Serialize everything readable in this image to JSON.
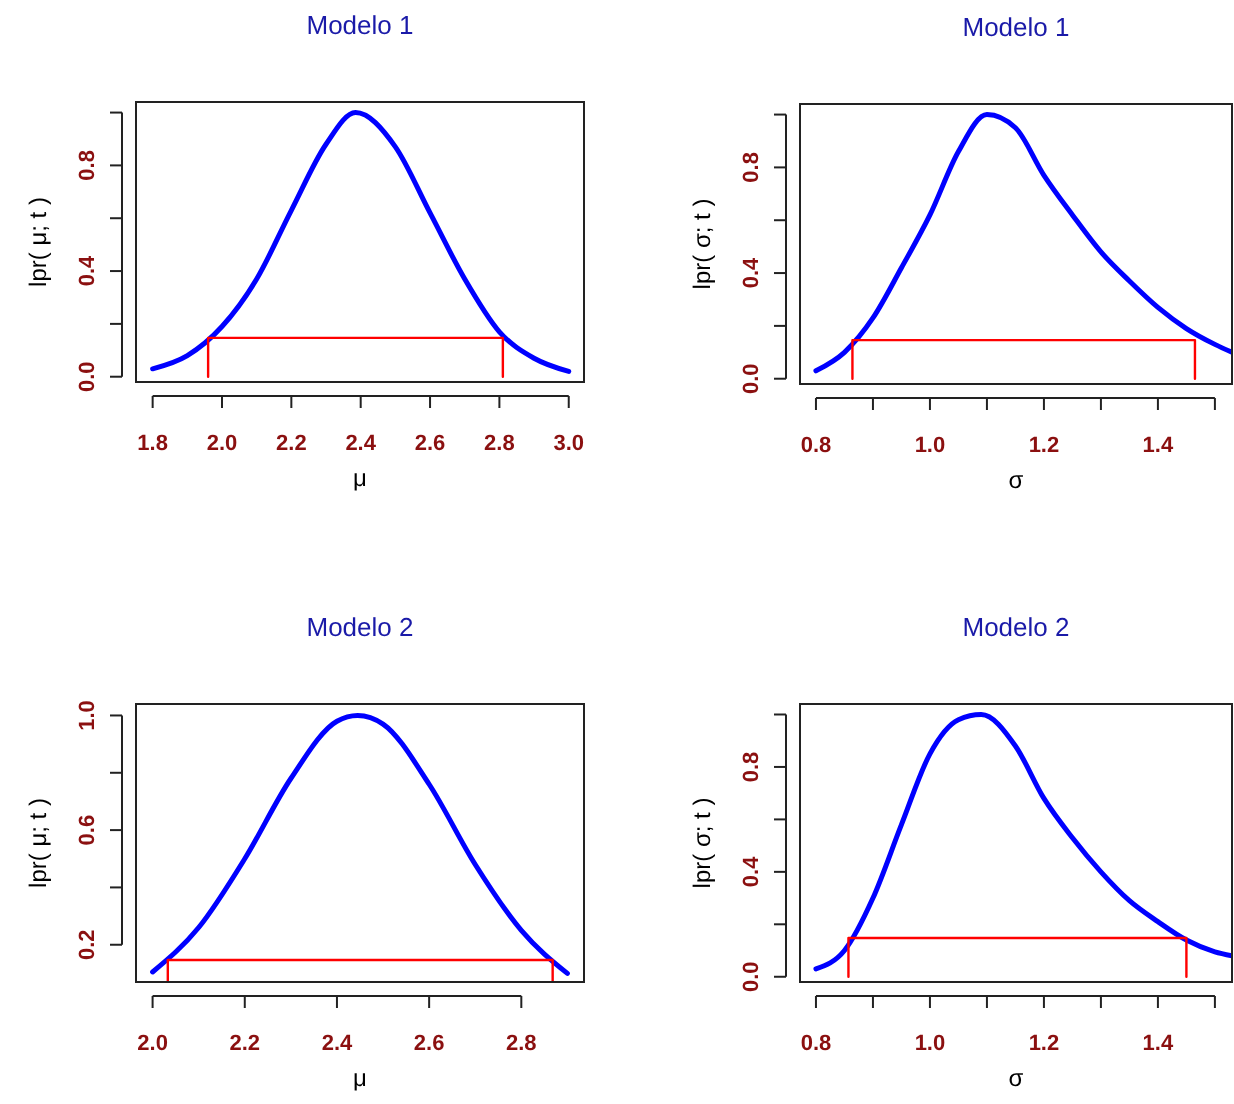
{
  "chart_data": [
    {
      "type": "line",
      "title": "Modelo 1",
      "xlabel": "μ",
      "ylabel": "lpr( μ; t )",
      "xlim": [
        1.752,
        3.044
      ],
      "xticks": [
        1.8,
        {
          "value": 2.0,
          "label": "2.0"
        },
        2.2,
        2.4,
        2.6,
        2.8,
        {
          "value": 3.0,
          "label": "3.0"
        }
      ],
      "ylim": [
        -0.02,
        1.04
      ],
      "yticks": [
        {
          "value": 0.0,
          "label": "0.0"
        },
        {
          "value": 0.2,
          "label": null
        },
        0.4,
        {
          "value": 0.6,
          "label": null
        },
        0.8,
        {
          "value": 1.0,
          "label": null
        }
      ],
      "series": [
        {
          "color": "#0000ff",
          "x": [
            1.8,
            1.9,
            2.0,
            2.1,
            2.2,
            2.3,
            2.385,
            2.5,
            2.6,
            2.7,
            2.8,
            2.9,
            3.0
          ],
          "values": [
            0.03,
            0.08,
            0.19,
            0.37,
            0.63,
            0.88,
            1.0,
            0.87,
            0.62,
            0.37,
            0.17,
            0.07,
            0.02
          ]
        },
        {
          "color": "#ff0000",
          "x": [
            1.96,
            1.96,
            2.81,
            2.81
          ],
          "values": [
            0.0,
            0.147,
            0.147,
            0.0
          ]
        }
      ]
    },
    {
      "type": "line",
      "title": "Modelo 1",
      "xlabel": "σ",
      "ylabel": "lpr( σ; t )",
      "xlim": [
        0.772,
        1.53
      ],
      "xticks": [
        0.8,
        {
          "value": 0.9,
          "label": null
        },
        {
          "value": 1.0,
          "label": "1.0"
        },
        {
          "value": 1.1,
          "label": null
        },
        1.2,
        {
          "value": 1.3,
          "label": null
        },
        1.4,
        {
          "value": 1.5,
          "label": null
        }
      ],
      "ylim": [
        -0.02,
        1.04
      ],
      "yticks": [
        {
          "value": 0.0,
          "label": "0.0"
        },
        {
          "value": 0.2,
          "label": null
        },
        0.4,
        {
          "value": 0.6,
          "label": null
        },
        0.8,
        {
          "value": 1.0,
          "label": null
        }
      ],
      "series": [
        {
          "color": "#0000ff",
          "x": [
            0.8,
            0.85,
            0.9,
            0.95,
            1.0,
            1.05,
            1.1,
            1.15,
            1.2,
            1.25,
            1.3,
            1.35,
            1.4,
            1.45,
            1.5,
            1.53
          ],
          "values": [
            0.03,
            0.1,
            0.23,
            0.42,
            0.62,
            0.86,
            1.0,
            0.95,
            0.77,
            0.62,
            0.48,
            0.37,
            0.27,
            0.19,
            0.13,
            0.1
          ]
        },
        {
          "color": "#ff0000",
          "x": [
            0.864,
            0.864,
            1.465,
            1.465
          ],
          "values": [
            0.0,
            0.146,
            0.146,
            0.0
          ]
        }
      ]
    },
    {
      "type": "line",
      "title": "Modelo 2",
      "xlabel": "μ",
      "ylabel": "lpr( μ; t )",
      "xlim": [
        1.964,
        2.936
      ],
      "xticks": [
        {
          "value": 2.0,
          "label": "2.0"
        },
        2.2,
        2.4,
        2.6,
        2.8
      ],
      "ylim": [
        0.07,
        1.04
      ],
      "yticks": [
        0.2,
        {
          "value": 0.4,
          "label": null
        },
        0.6,
        {
          "value": 0.8,
          "label": null
        },
        {
          "value": 1.0,
          "label": "1.0"
        }
      ],
      "series": [
        {
          "color": "#0000ff",
          "x": [
            2.0,
            2.1,
            2.2,
            2.3,
            2.4,
            2.445,
            2.5,
            2.6,
            2.7,
            2.8,
            2.9
          ],
          "values": [
            0.105,
            0.26,
            0.5,
            0.78,
            0.98,
            1.0,
            0.97,
            0.76,
            0.48,
            0.25,
            0.1
          ]
        },
        {
          "color": "#ff0000",
          "x": [
            2.033,
            2.033,
            2.868,
            2.868
          ],
          "values": [
            0.072,
            0.147,
            0.147,
            0.072
          ]
        }
      ]
    },
    {
      "type": "line",
      "title": "Modelo 2",
      "xlabel": "σ",
      "ylabel": "lpr( σ; t )",
      "xlim": [
        0.772,
        1.53
      ],
      "xticks": [
        0.8,
        {
          "value": 0.9,
          "label": null
        },
        {
          "value": 1.0,
          "label": "1.0"
        },
        {
          "value": 1.1,
          "label": null
        },
        1.2,
        {
          "value": 1.3,
          "label": null
        },
        1.4,
        {
          "value": 1.5,
          "label": null
        }
      ],
      "ylim": [
        -0.02,
        1.04
      ],
      "yticks": [
        {
          "value": 0.0,
          "label": "0.0"
        },
        {
          "value": 0.2,
          "label": null
        },
        0.4,
        {
          "value": 0.6,
          "label": null
        },
        0.8,
        {
          "value": 1.0,
          "label": null
        }
      ],
      "series": [
        {
          "color": "#0000ff",
          "x": [
            0.8,
            0.85,
            0.9,
            0.95,
            1.0,
            1.05,
            1.09,
            1.15,
            1.2,
            1.25,
            1.3,
            1.35,
            1.4,
            1.45,
            1.5,
            1.53
          ],
          "values": [
            0.03,
            0.1,
            0.3,
            0.58,
            0.85,
            0.98,
            1.0,
            0.88,
            0.68,
            0.53,
            0.4,
            0.29,
            0.21,
            0.14,
            0.095,
            0.08
          ]
        },
        {
          "color": "#ff0000",
          "x": [
            0.857,
            0.857,
            1.45,
            1.45
          ],
          "values": [
            0.0,
            0.148,
            0.148,
            0.0
          ]
        }
      ]
    }
  ]
}
